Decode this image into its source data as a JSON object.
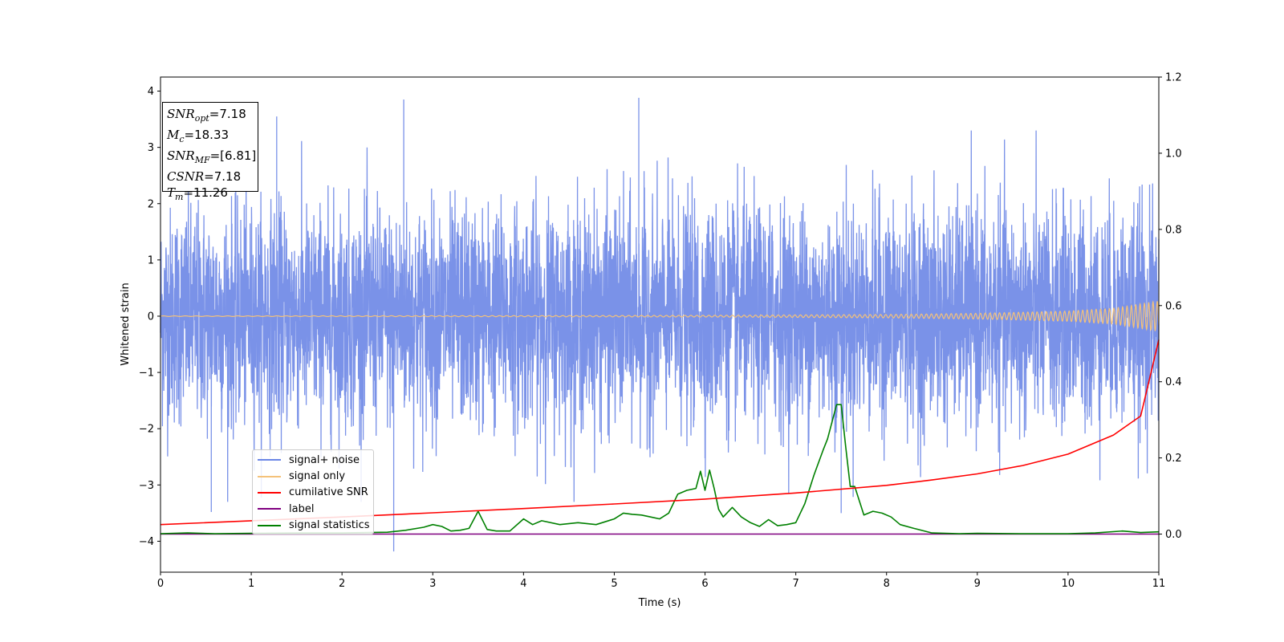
{
  "chart_data": {
    "type": "line",
    "xlabel": "Time (s)",
    "ylabel_left": "Whitened strain",
    "xlim": [
      0,
      11
    ],
    "ylim_left": [
      -4.55,
      4.25
    ],
    "ylim_right": [
      -0.1,
      1.2
    ],
    "x_ticks": [
      "0",
      "1",
      "2",
      "3",
      "4",
      "5",
      "6",
      "7",
      "8",
      "9",
      "10",
      "11"
    ],
    "y_ticks_left": [
      "−4",
      "−3",
      "−2",
      "−1",
      "0",
      "1",
      "2",
      "3",
      "4"
    ],
    "y_ticks_right": [
      "0.0",
      "0.2",
      "0.4",
      "0.6",
      "0.8",
      "1.0",
      "1.2"
    ],
    "grid": false,
    "legend_position": "lower-left",
    "annotation": {
      "snr_opt": "=7.18",
      "mc": "=18.33",
      "snr_mf": "=[6.81]",
      "csnr": "=7.18",
      "tm": "=11.26"
    },
    "series": [
      {
        "name": "signal+ noise",
        "color": "#6b86e6",
        "axis": "left",
        "description_values": {
          "amplitude_band": [
            -2.4,
            2.4
          ],
          "notable_spikes": [
            [
              1.28,
              3.55
            ],
            [
              2.68,
              3.85
            ],
            [
              5.27,
              3.88
            ],
            [
              2.57,
              -4.18
            ],
            [
              0.56,
              -3.48
            ],
            [
              7.5,
              -3.5
            ]
          ]
        }
      },
      {
        "name": "signal only",
        "color": "#f4c27a",
        "axis": "left",
        "envelope": {
          "x": [
            0,
            2,
            4,
            6,
            8,
            9,
            10,
            10.5,
            11
          ],
          "amplitude": [
            0.005,
            0.007,
            0.01,
            0.015,
            0.03,
            0.05,
            0.09,
            0.14,
            0.27
          ]
        }
      },
      {
        "name": "cumilative SNR",
        "color": "#ff0000",
        "axis": "right",
        "x": [
          0,
          1,
          2,
          3,
          4,
          5,
          6,
          7,
          8,
          8.5,
          9,
          9.5,
          10,
          10.5,
          10.8,
          11
        ],
        "y": [
          0.025,
          0.035,
          0.045,
          0.056,
          0.067,
          0.079,
          0.092,
          0.108,
          0.128,
          0.142,
          0.158,
          0.18,
          0.21,
          0.26,
          0.31,
          0.51
        ]
      },
      {
        "name": "label",
        "color": "#800080",
        "axis": "right",
        "x": [
          0,
          11
        ],
        "y": [
          0,
          0
        ]
      },
      {
        "name": "signal statistics",
        "color": "#008000",
        "axis": "right",
        "x": [
          0,
          0.3,
          0.6,
          1.0,
          1.5,
          2.0,
          2.5,
          2.7,
          2.9,
          3.0,
          3.1,
          3.2,
          3.3,
          3.4,
          3.5,
          3.6,
          3.7,
          3.85,
          4.0,
          4.1,
          4.2,
          4.4,
          4.6,
          4.8,
          5.0,
          5.1,
          5.2,
          5.3,
          5.4,
          5.5,
          5.6,
          5.7,
          5.8,
          5.9,
          5.95,
          6.0,
          6.05,
          6.1,
          6.15,
          6.2,
          6.3,
          6.4,
          6.5,
          6.6,
          6.7,
          6.8,
          6.9,
          7.0,
          7.1,
          7.2,
          7.3,
          7.35,
          7.45,
          7.5,
          7.55,
          7.6,
          7.65,
          7.75,
          7.85,
          7.95,
          8.05,
          8.15,
          8.3,
          8.5,
          8.8,
          9.0,
          9.5,
          10.0,
          10.3,
          10.6,
          10.8,
          11.0
        ],
        "y": [
          0.001,
          0.003,
          0.001,
          0.002,
          0.003,
          0.003,
          0.005,
          0.01,
          0.018,
          0.025,
          0.02,
          0.008,
          0.01,
          0.015,
          0.06,
          0.012,
          0.008,
          0.008,
          0.04,
          0.025,
          0.035,
          0.025,
          0.03,
          0.025,
          0.04,
          0.055,
          0.052,
          0.05,
          0.045,
          0.04,
          0.055,
          0.105,
          0.115,
          0.12,
          0.165,
          0.115,
          0.168,
          0.12,
          0.065,
          0.045,
          0.07,
          0.045,
          0.03,
          0.02,
          0.038,
          0.022,
          0.025,
          0.03,
          0.08,
          0.155,
          0.22,
          0.25,
          0.34,
          0.34,
          0.23,
          0.125,
          0.125,
          0.05,
          0.06,
          0.055,
          0.045,
          0.025,
          0.015,
          0.003,
          0.001,
          0.002,
          0.001,
          0.001,
          0.003,
          0.008,
          0.004,
          0.006
        ]
      }
    ]
  }
}
